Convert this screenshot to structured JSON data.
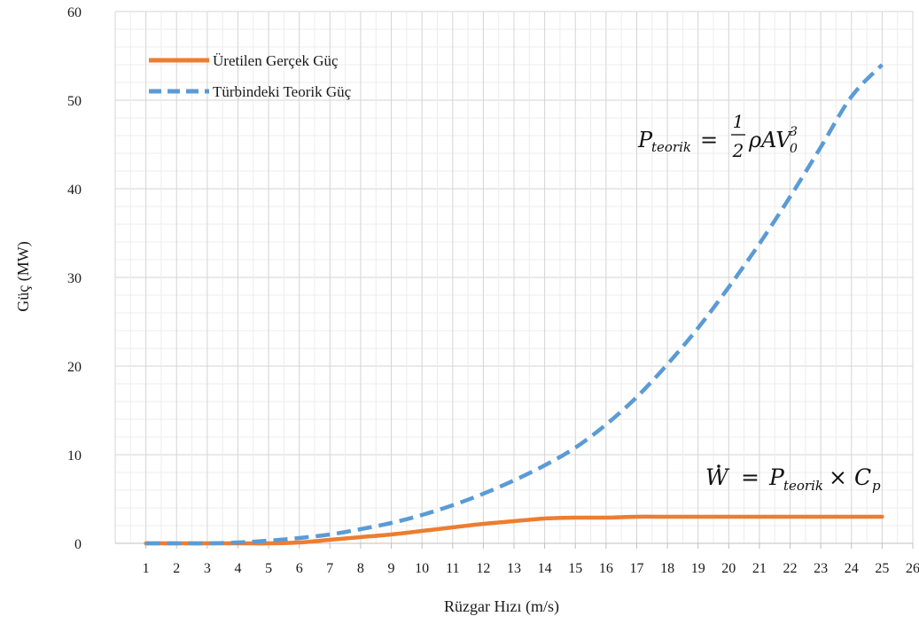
{
  "chart_data": {
    "type": "line",
    "xlabel": "Rüzgar Hızı (m/s)",
    "ylabel": "Güç (MW)",
    "xlim": [
      0,
      26
    ],
    "ylim": [
      0,
      60
    ],
    "x_ticks": [
      1,
      2,
      3,
      4,
      5,
      6,
      7,
      8,
      9,
      10,
      11,
      12,
      13,
      14,
      15,
      16,
      17,
      18,
      19,
      20,
      21,
      22,
      23,
      24,
      25,
      26
    ],
    "y_ticks": [
      0,
      10,
      20,
      30,
      40,
      50,
      60
    ],
    "grid": true,
    "legend_position": "top-left",
    "series": [
      {
        "name": "Üretilen Gerçek Güç",
        "color": "#ED7D31",
        "style": "solid",
        "x": [
          1,
          2,
          3,
          4,
          5,
          6,
          7,
          8,
          9,
          10,
          11,
          12,
          13,
          14,
          15,
          16,
          17,
          18,
          19,
          20,
          21,
          22,
          23,
          24,
          25
        ],
        "values": [
          0,
          0,
          0,
          0,
          0,
          0.1,
          0.4,
          0.7,
          1.0,
          1.4,
          1.8,
          2.2,
          2.5,
          2.8,
          2.9,
          2.9,
          3.0,
          3.0,
          3.0,
          3.0,
          3.0,
          3.0,
          3.0,
          3.0,
          3.0
        ]
      },
      {
        "name": "Türbindeki Teorik Güç",
        "color": "#5B9BD5",
        "style": "dashed",
        "x": [
          1,
          2,
          3,
          4,
          5,
          6,
          7,
          8,
          9,
          10,
          11,
          12,
          13,
          14,
          15,
          16,
          17,
          18,
          19,
          20,
          21,
          22,
          23,
          24,
          25
        ],
        "values": [
          0,
          0,
          0,
          0.1,
          0.3,
          0.6,
          1.0,
          1.6,
          2.3,
          3.2,
          4.3,
          5.6,
          7.1,
          8.8,
          10.8,
          13.4,
          16.5,
          20.2,
          24.3,
          28.9,
          33.8,
          39.1,
          44.7,
          50.4,
          54.0
        ]
      }
    ],
    "annotations": [
      {
        "id": "theoretical-power-formula",
        "text": "P_teorik = ½ ρ A V₀³"
      },
      {
        "id": "actual-power-formula",
        "text": "Ẇ = P_teorik × C_p"
      }
    ]
  }
}
